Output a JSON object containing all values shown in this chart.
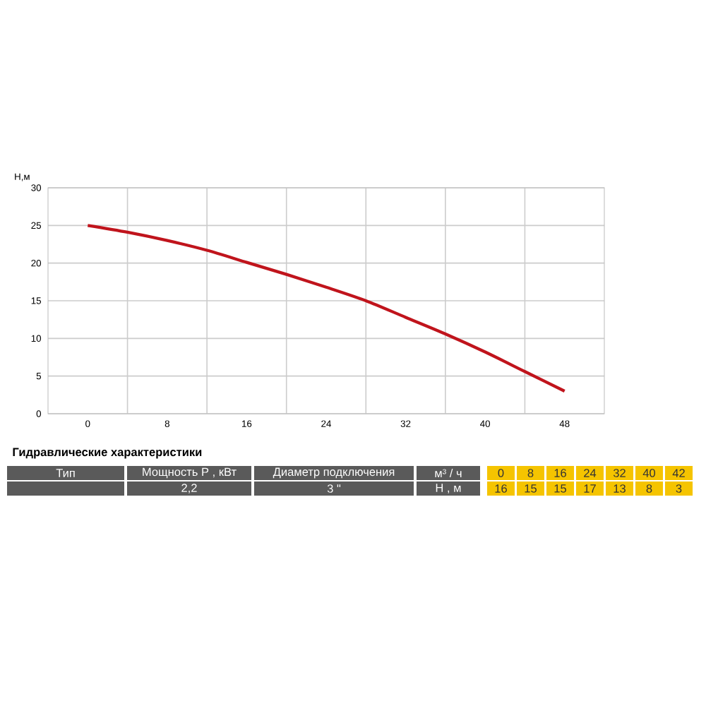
{
  "chart_data": {
    "type": "line",
    "ylabel": "Н,м",
    "x": [
      0,
      4,
      8,
      12,
      16,
      20,
      24,
      28,
      32,
      36,
      40,
      44,
      48
    ],
    "series": [
      {
        "color": "#c0141c",
        "values": [
          25,
          24.1,
          23,
          21.7,
          20.1,
          18.5,
          16.8,
          15,
          12.8,
          10.6,
          8.2,
          5.6,
          3
        ]
      }
    ],
    "xlim": [
      -4,
      52
    ],
    "xticks": [
      0,
      8,
      16,
      24,
      32,
      40,
      48
    ],
    "ylim": [
      0,
      30
    ],
    "yticks": [
      0,
      5,
      10,
      15,
      20,
      25,
      30
    ],
    "grid": true,
    "marker": "none",
    "line_style": "solid",
    "annotations": [
      "Гидравлические характеристики",
      "Тип",
      "Мощность Р , кВт",
      "Диаметр подключения",
      "м³ / ч",
      "2,2",
      "3 \"",
      "Н , м",
      "0",
      "8",
      "16",
      "24",
      "32",
      "40",
      "42",
      "16",
      "15",
      "15",
      "17",
      "13",
      "8",
      "3"
    ]
  }
}
